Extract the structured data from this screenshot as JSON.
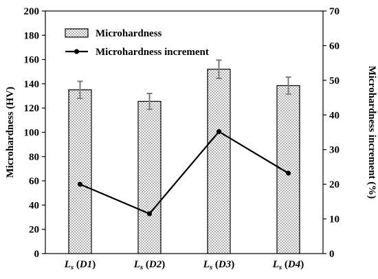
{
  "chart_data": {
    "type": "bar",
    "categories": [
      {
        "main": "L",
        "sub": "s",
        "suffix": " (D1)"
      },
      {
        "main": "L",
        "sub": "s",
        "suffix": " (D2)"
      },
      {
        "main": "L",
        "sub": "s",
        "suffix": " (D3)"
      },
      {
        "main": "L",
        "sub": "s",
        "suffix": " (D4)"
      }
    ],
    "series": [
      {
        "name": "Microhardness",
        "kind": "bar",
        "axis": "left",
        "values": [
          135,
          125.5,
          152,
          138.5
        ],
        "errors": [
          7,
          6.5,
          7.5,
          7
        ]
      },
      {
        "name": "Microhardness increment",
        "kind": "line",
        "axis": "right",
        "values": [
          20,
          11.5,
          35.2,
          23.2
        ]
      }
    ],
    "ylabel": "Microhardness (HV)",
    "y2label": "Microhardness increment (%)",
    "ylim": [
      0,
      200
    ],
    "y2lim": [
      0,
      70
    ],
    "yticks": [
      0,
      20,
      40,
      60,
      80,
      100,
      120,
      140,
      160,
      180,
      200
    ],
    "y2ticks": [
      0,
      10,
      20,
      30,
      40,
      50,
      60,
      70
    ],
    "legend_position": "top-left",
    "grid": false
  }
}
